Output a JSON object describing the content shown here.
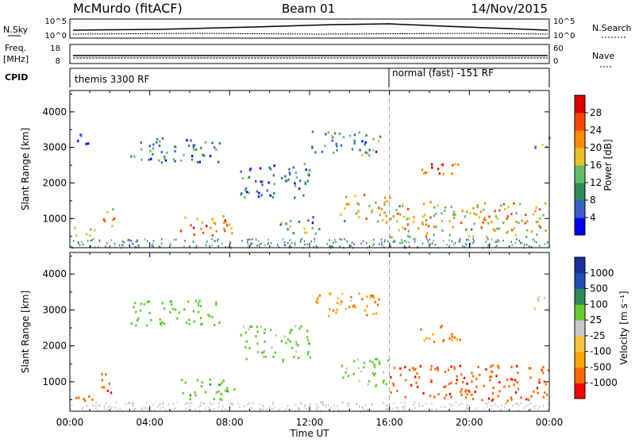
{
  "header": {
    "station": "McMurdo (fitACF)",
    "beam": "Beam 01",
    "date": "14/Nov/2015"
  },
  "summary": {
    "nsky_label": "N.Sky",
    "nsearch_label": "N.Search",
    "freq_label": "Freq.",
    "freq_unit": "[MHz]",
    "nave_label": "Nave",
    "cpid_label": "CPID",
    "left_ticks_top": [
      "10^5",
      "10^0"
    ],
    "right_ticks_top": [
      "10^5",
      "10^0"
    ],
    "left_ticks_freq": [
      "18",
      "8"
    ],
    "right_ticks_nave": [
      "60",
      "0"
    ],
    "cpid_modes": [
      {
        "label": "themis 3300 RF",
        "start_hour": 0
      },
      {
        "label": "normal (fast) -151 RF",
        "start_hour": 16
      }
    ]
  },
  "chart_data": [
    {
      "type": "heatmap",
      "name": "power",
      "xlabel": "",
      "ylabel": "Slant Range [km]",
      "xlim": [
        0,
        24
      ],
      "ylim": [
        180,
        4600
      ],
      "yticks": [
        "1000",
        "2000",
        "3000",
        "4000"
      ],
      "colorbar": {
        "label": "Power [dB]",
        "ticks": [
          "4",
          "8",
          "12",
          "16",
          "20",
          "24",
          "28"
        ],
        "range": [
          0,
          30
        ],
        "colors": [
          "#0000ff",
          "#3a5fcd",
          "#2e8b57",
          "#66bb6a",
          "#e6c229",
          "#ff8c00",
          "#ff4500",
          "#e00000"
        ]
      },
      "regions": [
        {
          "t": [
            0,
            1.2
          ],
          "r": [
            500,
            800
          ],
          "v": 14
        },
        {
          "t": [
            1.5,
            2.2
          ],
          "r": [
            700,
            1400
          ],
          "v": 20
        },
        {
          "t": [
            5.5,
            8.2
          ],
          "r": [
            500,
            1100
          ],
          "v": 22
        },
        {
          "t": [
            3.0,
            7.5
          ],
          "r": [
            2600,
            3300
          ],
          "v": 8
        },
        {
          "t": [
            8.5,
            12.0
          ],
          "r": [
            1600,
            2600
          ],
          "v": 8
        },
        {
          "t": [
            12.0,
            15.5
          ],
          "r": [
            2800,
            3500
          ],
          "v": 10
        },
        {
          "t": [
            13.5,
            16.0
          ],
          "r": [
            900,
            1700
          ],
          "v": 16
        },
        {
          "t": [
            16.0,
            24.0
          ],
          "r": [
            500,
            1500
          ],
          "v": 18
        },
        {
          "t": [
            17.5,
            19.5
          ],
          "r": [
            2100,
            2600
          ],
          "v": 22
        },
        {
          "t": [
            0.3,
            1.0
          ],
          "r": [
            3000,
            3400
          ],
          "v": 6
        },
        {
          "t": [
            23.2,
            24.0
          ],
          "r": [
            3000,
            3400
          ],
          "v": 10
        },
        {
          "t": [
            10.5,
            12.5
          ],
          "r": [
            600,
            1100
          ],
          "v": 10
        }
      ]
    },
    {
      "type": "heatmap",
      "name": "velocity",
      "xlabel": "Time UT",
      "ylabel": "Slant Range [km]",
      "xlim": [
        0,
        24
      ],
      "ylim": [
        180,
        4600
      ],
      "xticks": [
        "00:00",
        "04:00",
        "08:00",
        "12:00",
        "16:00",
        "20:00",
        "00:00"
      ],
      "yticks": [
        "1000",
        "2000",
        "3000",
        "4000"
      ],
      "colorbar": {
        "label": "Velocity [m s⁻¹]",
        "ticks": [
          "1000",
          "500",
          "100",
          "25",
          "-25",
          "-100",
          "-500",
          "-1000"
        ],
        "range": [
          -1000,
          1000
        ],
        "colors": [
          "#ff0000",
          "#ff6a00",
          "#ffa500",
          "#f5c542",
          "#c8c8c8",
          "#66cc33",
          "#2e8b57",
          "#1e4fb5",
          "#1a2fa0"
        ]
      },
      "regions": [
        {
          "t": [
            0,
            1.2
          ],
          "r": [
            500,
            800
          ],
          "v": -300
        },
        {
          "t": [
            1.5,
            2.2
          ],
          "r": [
            700,
            1400
          ],
          "v": -400
        },
        {
          "t": [
            5.5,
            8.2
          ],
          "r": [
            500,
            1100
          ],
          "v": 400
        },
        {
          "t": [
            3.0,
            7.5
          ],
          "r": [
            2600,
            3300
          ],
          "v": 200
        },
        {
          "t": [
            8.5,
            12.0
          ],
          "r": [
            1600,
            2600
          ],
          "v": 150
        },
        {
          "t": [
            12.0,
            15.5
          ],
          "r": [
            2800,
            3500
          ],
          "v": -60
        },
        {
          "t": [
            13.5,
            16.0
          ],
          "r": [
            900,
            1700
          ],
          "v": 150
        },
        {
          "t": [
            16.0,
            24.0
          ],
          "r": [
            500,
            1500
          ],
          "v": -400
        },
        {
          "t": [
            17.5,
            19.5
          ],
          "r": [
            2100,
            2600
          ],
          "v": -150
        },
        {
          "t": [
            23.2,
            24.0
          ],
          "r": [
            3000,
            3400
          ],
          "v": 0
        }
      ]
    }
  ]
}
